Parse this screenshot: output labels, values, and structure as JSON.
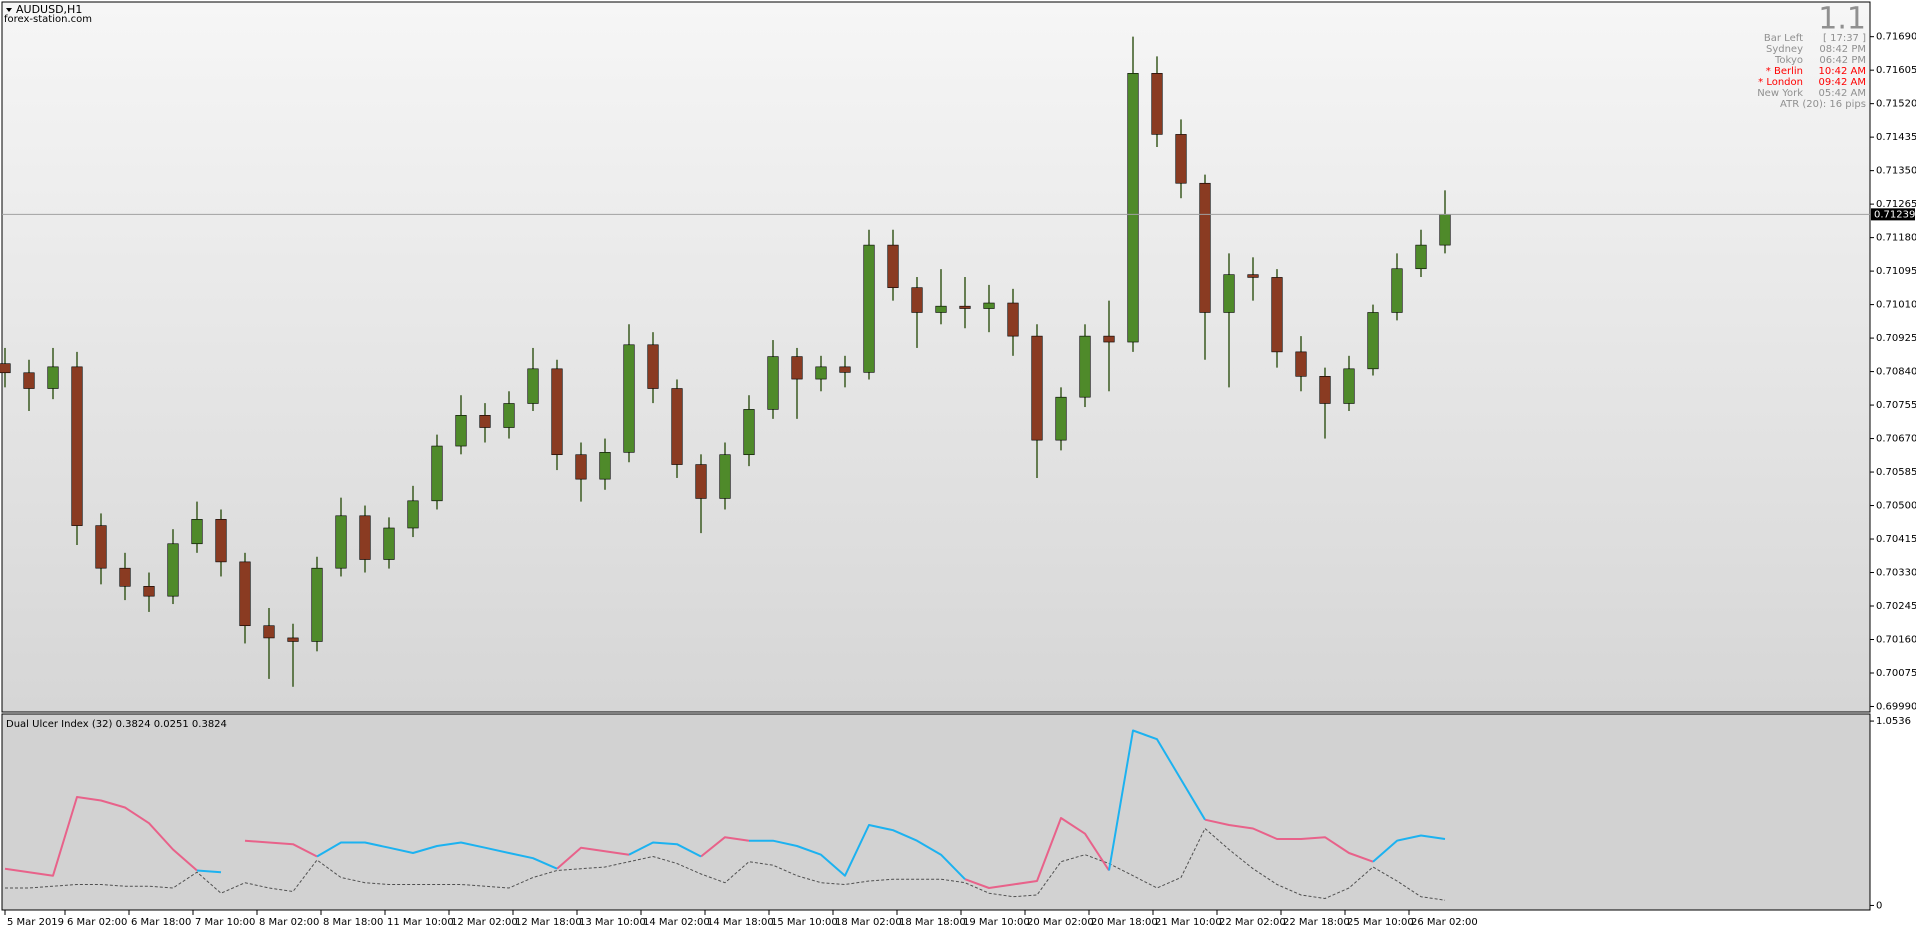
{
  "header": {
    "symbol": "AUDUSD,H1",
    "site": "forex-station.com"
  },
  "info_panel": {
    "big": "1.1",
    "rows": [
      {
        "label": "Bar Left",
        "value": "[ 17:37 ]",
        "color": "#909090"
      },
      {
        "label": "Sydney",
        "value": "08:42 PM",
        "color": "#909090"
      },
      {
        "label": "Tokyo",
        "value": "06:42 PM",
        "color": "#909090"
      },
      {
        "label": "* Berlin",
        "value": "10:42 AM",
        "color": "#ff0000"
      },
      {
        "label": "* London",
        "value": "09:42 AM",
        "color": "#ff0000"
      },
      {
        "label": "New York",
        "value": "05:42 AM",
        "color": "#909090"
      },
      {
        "label": "ATR (20): 16 pips",
        "value": null,
        "color": "#909090"
      }
    ]
  },
  "chart_data": [
    {
      "type": "candlestick",
      "x": [
        0,
        6,
        12,
        18,
        24,
        30,
        36,
        42,
        48,
        54,
        60,
        66,
        72,
        78,
        84,
        90,
        96,
        102,
        108,
        114,
        120,
        126,
        132,
        138,
        144,
        150,
        156,
        162,
        168,
        174,
        180,
        186,
        192,
        198,
        204,
        210,
        216,
        222,
        228,
        234,
        240,
        246,
        252,
        258,
        264,
        270,
        276,
        282,
        288,
        294,
        300,
        306,
        312,
        318,
        324,
        330,
        336,
        342,
        348,
        354,
        360
      ],
      "open": [
        0.7086,
        0.70837,
        0.70797,
        0.70852,
        0.70449,
        0.70341,
        0.70295,
        0.7027,
        0.70403,
        0.70465,
        0.70357,
        0.70195,
        0.70164,
        0.70155,
        0.70341,
        0.70474,
        0.70363,
        0.70443,
        0.70512,
        0.70651,
        0.70729,
        0.70698,
        0.70759,
        0.70847,
        0.70629,
        0.70567,
        0.70635,
        0.70908,
        0.70797,
        0.70604,
        0.70518,
        0.70629,
        0.70744,
        0.70878,
        0.70821,
        0.70852,
        0.70838,
        0.71161,
        0.71053,
        0.7099,
        0.71006,
        0.71,
        0.71014,
        0.7093,
        0.70666,
        0.70775,
        0.7093,
        0.70915,
        0.71597,
        0.71442,
        0.71318,
        0.7099,
        0.71086,
        0.71079,
        0.7089,
        0.70828,
        0.70759,
        0.70847,
        0.7099,
        0.71101,
        0.71161
      ],
      "high": [
        0.709,
        0.7087,
        0.709,
        0.7089,
        0.7048,
        0.7038,
        0.7033,
        0.7044,
        0.7051,
        0.7049,
        0.7038,
        0.7024,
        0.702,
        0.7037,
        0.7052,
        0.705,
        0.7047,
        0.7055,
        0.7068,
        0.7078,
        0.7076,
        0.7079,
        0.709,
        0.7087,
        0.7066,
        0.7067,
        0.7096,
        0.7094,
        0.7082,
        0.7063,
        0.7066,
        0.7078,
        0.7092,
        0.709,
        0.7088,
        0.7088,
        0.712,
        0.712,
        0.7108,
        0.711,
        0.7108,
        0.7106,
        0.7105,
        0.7096,
        0.708,
        0.7096,
        0.7102,
        0.7169,
        0.7164,
        0.7148,
        0.7134,
        0.7114,
        0.7113,
        0.711,
        0.7093,
        0.7085,
        0.7088,
        0.7101,
        0.7114,
        0.712,
        0.713
      ],
      "low": [
        0.708,
        0.7074,
        0.7077,
        0.704,
        0.703,
        0.7026,
        0.7023,
        0.7025,
        0.7038,
        0.7032,
        0.7015,
        0.7006,
        0.7004,
        0.7013,
        0.7032,
        0.7033,
        0.7034,
        0.7042,
        0.7049,
        0.7063,
        0.7066,
        0.7067,
        0.7074,
        0.7059,
        0.7051,
        0.7054,
        0.7061,
        0.7076,
        0.7057,
        0.7043,
        0.7049,
        0.706,
        0.7072,
        0.7072,
        0.7079,
        0.708,
        0.7082,
        0.7102,
        0.709,
        0.7096,
        0.7095,
        0.7094,
        0.7088,
        0.7057,
        0.7064,
        0.7075,
        0.7079,
        0.7089,
        0.7141,
        0.7128,
        0.7087,
        0.708,
        0.7102,
        0.7085,
        0.7079,
        0.7067,
        0.7074,
        0.7083,
        0.7097,
        0.7108,
        0.7114
      ],
      "close": [
        0.70837,
        0.70797,
        0.70852,
        0.70449,
        0.70341,
        0.70295,
        0.7027,
        0.70403,
        0.70465,
        0.70357,
        0.70195,
        0.70164,
        0.70155,
        0.70341,
        0.70474,
        0.70363,
        0.70443,
        0.70512,
        0.70651,
        0.70729,
        0.70698,
        0.70759,
        0.70847,
        0.70629,
        0.70567,
        0.70635,
        0.70908,
        0.70797,
        0.70604,
        0.70518,
        0.70629,
        0.70744,
        0.70878,
        0.70821,
        0.70852,
        0.70838,
        0.71161,
        0.71053,
        0.7099,
        0.71006,
        0.71,
        0.71014,
        0.7093,
        0.70666,
        0.70775,
        0.7093,
        0.70915,
        0.71597,
        0.71442,
        0.71318,
        0.7099,
        0.71086,
        0.71079,
        0.7089,
        0.70828,
        0.70759,
        0.70847,
        0.7099,
        0.71101,
        0.71161,
        0.71239
      ],
      "up_color": "#4f8a2a",
      "down_color": "#8a3b22",
      "wick_color": "#3a5a20",
      "current_price": 0.71239,
      "xlim": [
        -0.75,
        466.25
      ],
      "ylim": [
        0.69976,
        0.71778
      ],
      "yticks": [
        {
          "value": 0.6999,
          "label": "0.69990"
        },
        0.70075,
        {
          "value": 0.7016,
          "label": "0.70160"
        },
        0.70245,
        {
          "value": 0.7033,
          "label": "0.70330"
        },
        0.70415,
        {
          "value": 0.705,
          "label": "0.70500"
        },
        0.70585,
        {
          "value": 0.7067,
          "label": "0.70670"
        },
        0.70755,
        {
          "value": 0.7084,
          "label": "0.70840"
        },
        0.70925,
        {
          "value": 0.7101,
          "label": "0.71010"
        },
        0.71095,
        {
          "value": 0.7118,
          "label": "0.71180"
        },
        0.71265,
        {
          "value": 0.7135,
          "label": "0.71350"
        },
        0.71435,
        {
          "value": 0.7152,
          "label": "0.71520"
        },
        0.71605,
        {
          "value": 0.7169,
          "label": "0.71690"
        }
      ]
    },
    {
      "type": "line",
      "title": "Dual Ulcer Index (32) 0.3824 0.0251 0.3824",
      "x": [
        0,
        6,
        12,
        18,
        24,
        30,
        36,
        42,
        48,
        54,
        60,
        66,
        72,
        78,
        84,
        90,
        96,
        102,
        108,
        114,
        120,
        126,
        132,
        138,
        144,
        150,
        156,
        162,
        168,
        174,
        180,
        186,
        192,
        198,
        204,
        210,
        216,
        222,
        228,
        234,
        240,
        246,
        252,
        258,
        264,
        270,
        276,
        282,
        288,
        294,
        300,
        306,
        312,
        318,
        324,
        330,
        336,
        342,
        348,
        354,
        360
      ],
      "series": [
        {
          "color": "#e8628a",
          "width": 2,
          "dashed": false,
          "values": [
            0.21,
            0.19,
            0.17,
            0.62,
            0.6,
            0.56,
            0.47,
            0.32,
            0.2,
            null,
            0.37,
            0.36,
            0.35,
            0.28,
            null,
            null,
            null,
            null,
            null,
            null,
            null,
            null,
            null,
            0.21,
            0.33,
            0.31,
            0.29,
            null,
            null,
            0.28,
            0.39,
            0.37,
            null,
            null,
            null,
            null,
            null,
            null,
            null,
            null,
            0.15,
            0.1,
            0.12,
            0.14,
            0.5,
            0.41,
            0.2,
            null,
            null,
            null,
            0.49,
            0.46,
            0.44,
            0.38,
            0.38,
            0.39,
            0.3,
            0.25,
            null,
            null,
            null
          ]
        },
        {
          "color": "#1cb2f0",
          "width": 2,
          "dashed": false,
          "values": [
            null,
            null,
            null,
            null,
            null,
            null,
            null,
            null,
            0.2,
            0.19,
            null,
            null,
            null,
            0.28,
            0.36,
            0.36,
            0.33,
            0.3,
            0.34,
            0.36,
            0.33,
            0.3,
            0.27,
            0.21,
            null,
            null,
            0.29,
            0.36,
            0.35,
            0.28,
            null,
            0.37,
            0.37,
            0.34,
            0.29,
            0.17,
            0.46,
            0.43,
            0.37,
            0.29,
            0.15,
            null,
            null,
            null,
            null,
            null,
            0.2,
            1.0,
            0.95,
            0.72,
            0.49,
            null,
            null,
            null,
            null,
            null,
            null,
            0.25,
            0.37,
            0.4,
            0.38
          ]
        },
        {
          "color": "#505050",
          "width": 1,
          "dashed": true,
          "values": [
            0.1,
            0.1,
            0.11,
            0.12,
            0.12,
            0.11,
            0.11,
            0.1,
            0.19,
            0.07,
            0.13,
            0.1,
            0.08,
            0.26,
            0.16,
            0.13,
            0.12,
            0.12,
            0.12,
            0.12,
            0.11,
            0.1,
            0.16,
            0.2,
            0.21,
            0.22,
            0.25,
            0.28,
            0.24,
            0.18,
            0.13,
            0.25,
            0.23,
            0.17,
            0.13,
            0.12,
            0.14,
            0.15,
            0.15,
            0.15,
            0.13,
            0.07,
            0.05,
            0.06,
            0.25,
            0.29,
            0.24,
            0.17,
            0.1,
            0.16,
            0.44,
            0.32,
            0.21,
            0.12,
            0.06,
            0.04,
            0.1,
            0.22,
            0.14,
            0.05,
            0.03
          ]
        }
      ],
      "xlim": [
        -0.75,
        466.25
      ],
      "ylim": [
        -0.026,
        1.094
      ],
      "yticks": [
        0,
        1.0536
      ],
      "xticks": [
        {
          "value": 0,
          "label": "5 Mar 2019"
        },
        {
          "value": 15,
          "label": "6 Mar 02:00"
        },
        {
          "value": 31,
          "label": "6 Mar 18:00"
        },
        {
          "value": 47,
          "label": "7 Mar 10:00"
        },
        {
          "value": 63,
          "label": "8 Mar 02:00"
        },
        {
          "value": 79,
          "label": "8 Mar 18:00"
        },
        {
          "value": 95,
          "label": "11 Mar 10:00"
        },
        {
          "value": 111,
          "label": "12 Mar 02:00"
        },
        {
          "value": 127,
          "label": "12 Mar 18:00"
        },
        {
          "value": 143,
          "label": "13 Mar 10:00"
        },
        {
          "value": 159,
          "label": "14 Mar 02:00"
        },
        {
          "value": 175,
          "label": "14 Mar 18:00"
        },
        {
          "value": 191,
          "label": "15 Mar 10:00"
        },
        {
          "value": 207,
          "label": "18 Mar 02:00"
        },
        {
          "value": 223,
          "label": "18 Mar 18:00"
        },
        {
          "value": 239,
          "label": "19 Mar 10:00"
        },
        {
          "value": 255,
          "label": "20 Mar 02:00"
        },
        {
          "value": 271,
          "label": "20 Mar 18:00"
        },
        {
          "value": 287,
          "label": "21 Mar 10:00"
        },
        {
          "value": 303,
          "label": "22 Mar 02:00"
        },
        {
          "value": 319,
          "label": "22 Mar 18:00"
        },
        {
          "value": 335,
          "label": "25 Mar 10:00"
        },
        {
          "value": 351,
          "label": "26 Mar 02:00"
        }
      ]
    }
  ]
}
